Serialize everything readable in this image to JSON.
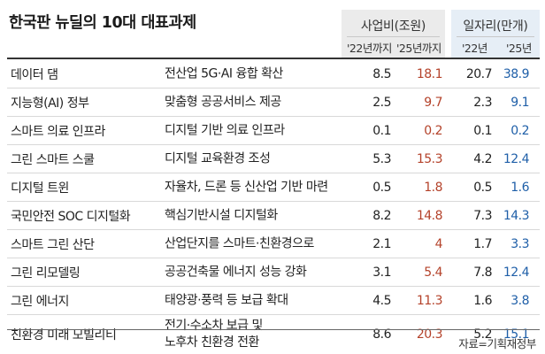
{
  "title": "한국판 뉴딜의 10대 대표과제",
  "header": {
    "investment": {
      "label": "사업비(조원)",
      "sub1": "'22년까지",
      "sub2": "'25년까지"
    },
    "jobs": {
      "label": "일자리(만개)",
      "sub1": "'22년",
      "sub2": "'25년"
    }
  },
  "rows": [
    {
      "name": "데이터 댐",
      "desc": "전산업 5G·AI 융합 확산",
      "inv22": "8.5",
      "inv25": "18.1",
      "job22": "20.7",
      "job25": "38.9"
    },
    {
      "name": "지능형(AI) 정부",
      "desc": "맞춤형 공공서비스 제공",
      "inv22": "2.5",
      "inv25": "9.7",
      "job22": "2.3",
      "job25": "9.1"
    },
    {
      "name": "스마트 의료 인프라",
      "desc": "디지털 기반 의료 인프라",
      "inv22": "0.1",
      "inv25": "0.2",
      "job22": "0.1",
      "job25": "0.2"
    },
    {
      "name": "그린 스마트 스쿨",
      "desc": "디지털 교육환경 조성",
      "inv22": "5.3",
      "inv25": "15.3",
      "job22": "4.2",
      "job25": "12.4"
    },
    {
      "name": "디지털 트윈",
      "desc": "자율차, 드론 등 신산업 기반 마련",
      "inv22": "0.5",
      "inv25": "1.8",
      "job22": "0.5",
      "job25": "1.6"
    },
    {
      "name": "국민안전 SOC 디지털화",
      "desc": "핵심기반시설 디지털화",
      "inv22": "8.2",
      "inv25": "14.8",
      "job22": "7.3",
      "job25": "14.3"
    },
    {
      "name": "스마트 그린 산단",
      "desc": "산업단지를 스마트·친환경으로",
      "inv22": "2.1",
      "inv25": "4",
      "job22": "1.7",
      "job25": "3.3"
    },
    {
      "name": "그린 리모델링",
      "desc": "공공건축물 에너지 성능 강화",
      "inv22": "3.1",
      "inv25": "5.4",
      "job22": "7.8",
      "job25": "12.4"
    },
    {
      "name": "그린 에너지",
      "desc": "태양광·풍력 등 보급 확대",
      "inv22": "4.5",
      "inv25": "11.3",
      "job22": "1.6",
      "job25": "3.8"
    },
    {
      "name": "친환경 미래 모빌리티",
      "desc_line1": "전기·수소차 보급 및",
      "desc_line2": "노후차 친환경 전환",
      "inv22": "8.6",
      "inv25": "20.3",
      "job22": "5.2",
      "job25": "15.1"
    }
  ],
  "source": "자료=기획재정부",
  "colors": {
    "inv25": "#b4422a",
    "job25": "#1f5fa8",
    "investHeaderBg": "#ebebeb",
    "jobsHeaderBg": "#e6eef6"
  }
}
